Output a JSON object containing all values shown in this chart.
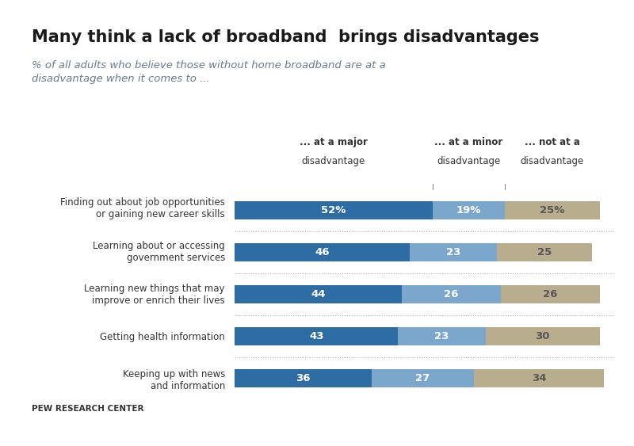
{
  "title": "Many think a lack of broadband  brings disadvantages",
  "subtitle": "% of all adults who believe those without home broadband are at a\ndisadvantage when it comes to ...",
  "categories": [
    "Finding out about job opportunities\nor gaining new career skills",
    "Learning about or accessing\ngovernment services",
    "Learning new things that may\nimprove or enrich their lives",
    "Getting health information",
    "Keeping up with news\nand information"
  ],
  "major": [
    52,
    46,
    44,
    43,
    36
  ],
  "minor": [
    19,
    23,
    26,
    23,
    27
  ],
  "not_at": [
    25,
    25,
    26,
    30,
    34
  ],
  "major_labels": [
    "52%",
    "46",
    "44",
    "43",
    "36"
  ],
  "minor_labels": [
    "19%",
    "23",
    "26",
    "23",
    "27"
  ],
  "not_labels": [
    "25%",
    "25",
    "26",
    "30",
    "34"
  ],
  "color_major": "#2E6DA4",
  "color_minor": "#7BA7CC",
  "color_not": "#B8AE8E",
  "color_header_bg": "#4A7AAF",
  "header_labels": [
    "... at a major\ndisadvantage",
    "... at a minor\ndisadvantage",
    "... not at a\ndisadvantage"
  ],
  "footer_text": "PEW RESEARCH CENTER",
  "background_color": "#FFFFFF",
  "tick_color": "#888888"
}
